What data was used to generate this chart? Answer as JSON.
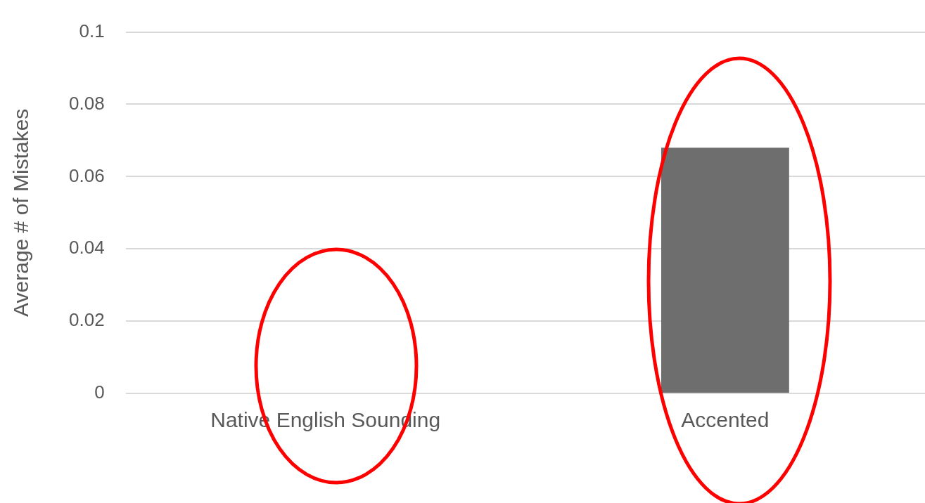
{
  "chart_data": {
    "type": "bar",
    "ylabel": "Average # of Mistakes",
    "categories": [
      "Native English Sounding",
      "Accented"
    ],
    "values": [
      0,
      0.068
    ],
    "color": "#6e6e6e",
    "ylim": [
      0,
      0.1
    ],
    "yticks": [
      0,
      0.02,
      0.04,
      0.06,
      0.08,
      0.1
    ],
    "grid": "y",
    "legend": false
  }
}
